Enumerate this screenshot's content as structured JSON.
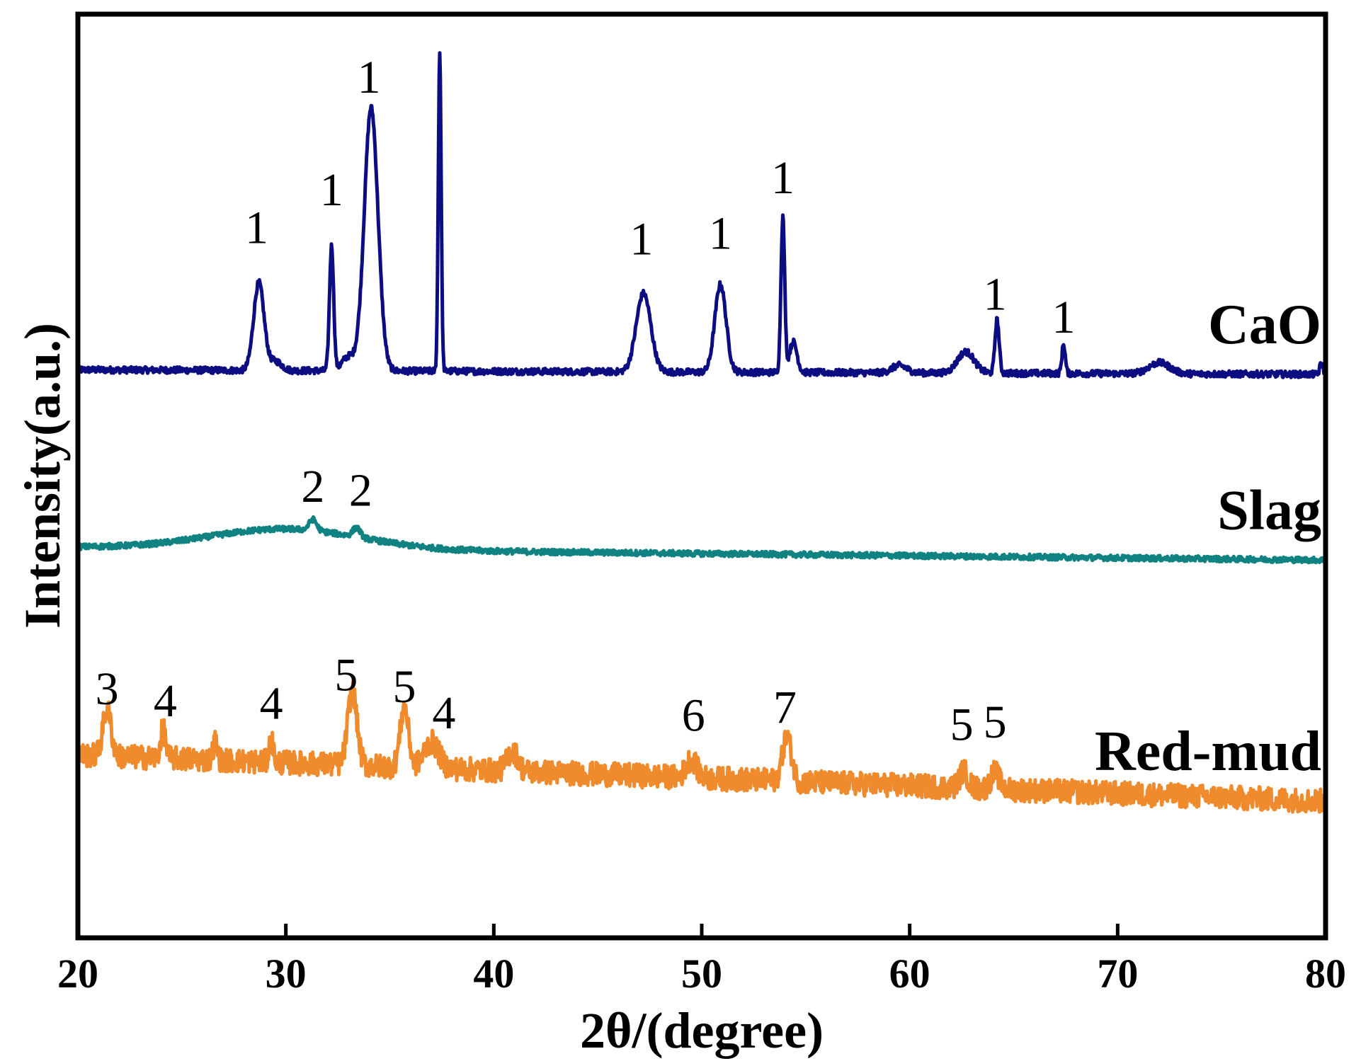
{
  "chart_data": {
    "type": "line",
    "title": "",
    "xlabel": "2θ/(degree)",
    "ylabel": "Intensity(a.u.)",
    "xlim": [
      20,
      80
    ],
    "xticks": [
      20,
      30,
      40,
      50,
      60,
      70,
      80
    ],
    "xtick_labels": [
      "20",
      "30",
      "40",
      "50",
      "60",
      "70",
      "80"
    ],
    "y_units": "arbitrary (stacked offsets)",
    "ylim": [
      0,
      100
    ],
    "legend": "none (series labels at right end)",
    "series": [
      {
        "name": "CaO",
        "label": "CaO",
        "color": "#0d0d82",
        "baseline": 61.5,
        "end_baseline": 61.0,
        "noise": 0.35,
        "peaks": [
          {
            "pos": 28.7,
            "height": 9.5,
            "width": 0.25
          },
          {
            "pos": 29.5,
            "height": 1.0,
            "width": 0.3
          },
          {
            "pos": 32.2,
            "height": 13.5,
            "width": 0.1
          },
          {
            "pos": 33.0,
            "height": 1.5,
            "width": 0.3
          },
          {
            "pos": 34.1,
            "height": 28.5,
            "width": 0.33
          },
          {
            "pos": 37.4,
            "height": 34.5,
            "width": 0.07
          },
          {
            "pos": 47.2,
            "height": 8.5,
            "width": 0.35
          },
          {
            "pos": 50.9,
            "height": 9.5,
            "width": 0.27
          },
          {
            "pos": 53.9,
            "height": 16.8,
            "width": 0.09
          },
          {
            "pos": 54.4,
            "height": 3.3,
            "width": 0.18
          },
          {
            "pos": 59.5,
            "height": 0.8,
            "width": 0.35
          },
          {
            "pos": 62.7,
            "height": 2.3,
            "width": 0.4
          },
          {
            "pos": 64.2,
            "height": 5.8,
            "width": 0.1
          },
          {
            "pos": 67.4,
            "height": 3.2,
            "width": 0.08
          },
          {
            "pos": 72.0,
            "height": 1.2,
            "width": 0.5
          },
          {
            "pos": 79.8,
            "height": 1.2,
            "width": 0.08
          }
        ]
      },
      {
        "name": "Slag",
        "label": "Slag",
        "color": "#108282",
        "baseline": 42.3,
        "end_baseline": 40.9,
        "noise": 0.3,
        "peaks": [
          {
            "pos": 30.0,
            "height": 2.2,
            "width": 3.6
          },
          {
            "pos": 31.3,
            "height": 1.2,
            "width": 0.18
          },
          {
            "pos": 33.4,
            "height": 1.0,
            "width": 0.18
          }
        ]
      },
      {
        "name": "Red-mud",
        "label": "Red-mud",
        "color": "#ef8a2d",
        "baseline": 19.8,
        "end_baseline": 14.8,
        "noise": 1.3,
        "peaks": [
          {
            "pos": 21.4,
            "height": 5.0,
            "width": 0.2
          },
          {
            "pos": 24.1,
            "height": 3.2,
            "width": 0.12
          },
          {
            "pos": 26.6,
            "height": 2.0,
            "width": 0.1
          },
          {
            "pos": 29.3,
            "height": 2.4,
            "width": 0.1
          },
          {
            "pos": 33.2,
            "height": 8.0,
            "width": 0.22
          },
          {
            "pos": 35.7,
            "height": 6.5,
            "width": 0.2
          },
          {
            "pos": 37.0,
            "height": 2.8,
            "width": 0.35
          },
          {
            "pos": 40.9,
            "height": 2.2,
            "width": 0.25
          },
          {
            "pos": 49.5,
            "height": 2.0,
            "width": 0.25
          },
          {
            "pos": 54.1,
            "height": 4.8,
            "width": 0.22
          },
          {
            "pos": 62.6,
            "height": 1.8,
            "width": 0.2
          },
          {
            "pos": 64.1,
            "height": 1.8,
            "width": 0.2
          }
        ]
      }
    ],
    "annotations": [
      {
        "text": "1",
        "x": 28.6,
        "y": 75.2
      },
      {
        "text": "1",
        "x": 32.2,
        "y": 79.3
      },
      {
        "text": "1",
        "x": 34.0,
        "y": 91.5
      },
      {
        "text": "1",
        "x": 47.1,
        "y": 74.0
      },
      {
        "text": "1",
        "x": 50.9,
        "y": 74.6
      },
      {
        "text": "1",
        "x": 53.9,
        "y": 80.6
      },
      {
        "text": "1",
        "x": 64.1,
        "y": 68.0
      },
      {
        "text": "1",
        "x": 67.4,
        "y": 65.5
      },
      {
        "text": "2",
        "x": 31.3,
        "y": 47.2
      },
      {
        "text": "2",
        "x": 33.6,
        "y": 46.8
      },
      {
        "text": "3",
        "x": 21.4,
        "y": 25.3
      },
      {
        "text": "4",
        "x": 24.2,
        "y": 24.0
      },
      {
        "text": "4",
        "x": 29.3,
        "y": 23.7
      },
      {
        "text": "5",
        "x": 32.9,
        "y": 26.8
      },
      {
        "text": "5",
        "x": 35.7,
        "y": 25.5
      },
      {
        "text": "4",
        "x": 37.6,
        "y": 22.7
      },
      {
        "text": "6",
        "x": 49.6,
        "y": 22.4
      },
      {
        "text": "7",
        "x": 54.0,
        "y": 23.3
      },
      {
        "text": "5",
        "x": 62.5,
        "y": 21.4
      },
      {
        "text": "5",
        "x": 64.1,
        "y": 21.7
      }
    ]
  }
}
